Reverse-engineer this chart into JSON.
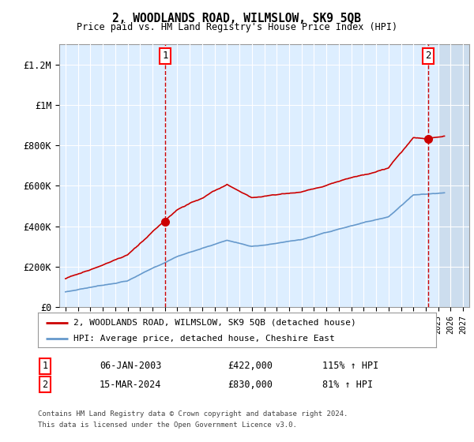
{
  "title": "2, WOODLANDS ROAD, WILMSLOW, SK9 5QB",
  "subtitle": "Price paid vs. HM Land Registry's House Price Index (HPI)",
  "legend_line1": "2, WOODLANDS ROAD, WILMSLOW, SK9 5QB (detached house)",
  "legend_line2": "HPI: Average price, detached house, Cheshire East",
  "sale1_label": "1",
  "sale1_date_str": "06-JAN-2003",
  "sale1_year": 2003.02,
  "sale1_price": 422000,
  "sale1_pct": "115% ↑ HPI",
  "sale2_label": "2",
  "sale2_date_str": "15-MAR-2024",
  "sale2_year": 2024.21,
  "sale2_price": 830000,
  "sale2_pct": "81% ↑ HPI",
  "footer1": "Contains HM Land Registry data © Crown copyright and database right 2024.",
  "footer2": "This data is licensed under the Open Government Licence v3.0.",
  "xlim_left": 1994.5,
  "xlim_right": 2027.5,
  "ylim_bottom": 0,
  "ylim_top": 1300000,
  "background_color": "#ffffff",
  "plot_bg_color": "#ddeeff",
  "grid_color": "#ffffff",
  "red_color": "#cc0000",
  "blue_color": "#6699cc",
  "hatch_color": "#ccddee"
}
